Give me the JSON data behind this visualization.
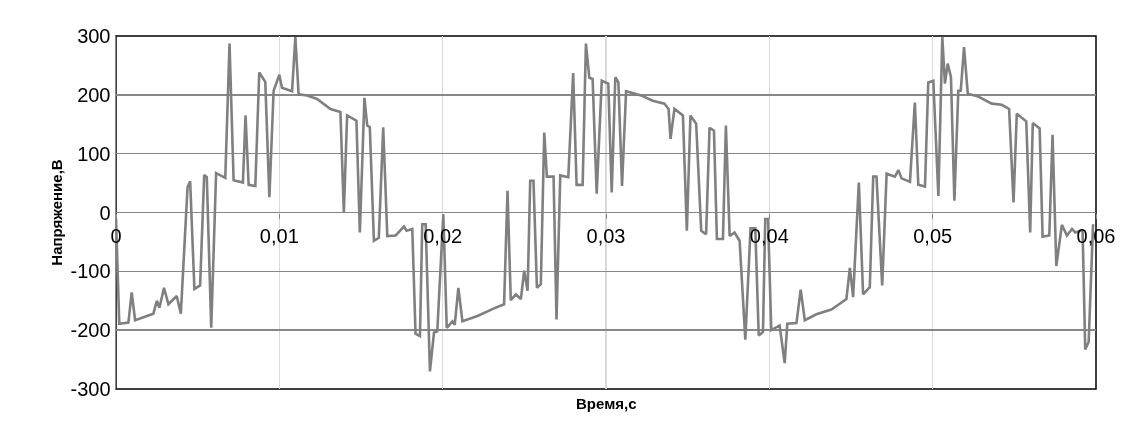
{
  "chart_data": {
    "type": "line",
    "xlabel": "Время,с",
    "ylabel": "Напряжение,В",
    "xlim": [
      0,
      0.06
    ],
    "ylim": [
      -300,
      300
    ],
    "xticks": [
      0,
      {
        "value": 0.01,
        "label": "0,01"
      },
      {
        "value": 0.02,
        "label": "0,02"
      },
      {
        "value": 0.03,
        "label": "0,03"
      },
      {
        "value": 0.04,
        "label": "0,04"
      },
      {
        "value": 0.05,
        "label": "0,05"
      },
      {
        "value": 0.06,
        "label": "0,06"
      }
    ],
    "yticks": [
      -300,
      -200,
      -100,
      0,
      100,
      200,
      300
    ],
    "grid": true,
    "marker": "none",
    "line_style": "solid",
    "series": [
      {
        "color": "#808080",
        "x": [
          0,
          0.0002,
          0.00076,
          0.00096,
          0.00117,
          0.00168,
          0.00229,
          0.0025,
          0.00266,
          0.00294,
          0.00321,
          0.00372,
          0.00397,
          0.00438,
          0.00454,
          0.0048,
          0.00515,
          0.0054,
          0.00556,
          0.00583,
          0.00613,
          0.00669,
          0.00695,
          0.0072,
          0.00777,
          0.00793,
          0.00812,
          0.00853,
          0.00877,
          0.00914,
          0.00939,
          0.00965,
          0.01,
          0.01016,
          0.01078,
          0.01098,
          0.01118,
          0.0117,
          0.01231,
          0.01313,
          0.01374,
          0.01395,
          0.01415,
          0.01472,
          0.01493,
          0.01521,
          0.01538,
          0.01554,
          0.01579,
          0.01609,
          0.01636,
          0.01661,
          0.01712,
          0.01763,
          0.01779,
          0.01814,
          0.01834,
          0.01861,
          0.01875,
          0.01896,
          0.01922,
          0.01947,
          0.01967,
          0.02004,
          0.02025,
          0.0206,
          0.02074,
          0.02096,
          0.02121,
          0.02213,
          0.02315,
          0.02376,
          0.02397,
          0.02417,
          0.02448,
          0.02479,
          0.02499,
          0.0252,
          0.02536,
          0.02556,
          0.02577,
          0.02601,
          0.02622,
          0.02638,
          0.02679,
          0.02697,
          0.0272,
          0.02769,
          0.02799,
          0.0282,
          0.02857,
          0.02877,
          0.02898,
          0.02918,
          0.02943,
          0.02974,
          0.03014,
          0.03035,
          0.03057,
          0.03076,
          0.03098,
          0.03123,
          0.03215,
          0.03286,
          0.03358,
          0.03383,
          0.03395,
          0.03419,
          0.03471,
          0.03495,
          0.03517,
          0.03552,
          0.03583,
          0.03613,
          0.03634,
          0.03661,
          0.03679,
          0.03716,
          0.03734,
          0.03757,
          0.03787,
          0.03818,
          0.03853,
          0.03885,
          0.03914,
          0.03935,
          0.03961,
          0.03975,
          0.03992,
          0.04012,
          0.04063,
          0.04094,
          0.0411,
          0.04166,
          0.04192,
          0.04217,
          0.04288,
          0.0438,
          0.04442,
          0.04472,
          0.04493,
          0.04513,
          0.04548,
          0.04574,
          0.04615,
          0.04636,
          0.04656,
          0.04691,
          0.04718,
          0.04769,
          0.0479,
          0.0481,
          0.04861,
          0.04891,
          0.04912,
          0.04953,
          0.04973,
          0.05004,
          0.05035,
          0.05059,
          0.05075,
          0.05092,
          0.05112,
          0.05133,
          0.05157,
          0.05172,
          0.05192,
          0.05215,
          0.0528,
          0.05362,
          0.05423,
          0.05468,
          0.05495,
          0.05515,
          0.05573,
          0.05597,
          0.05613,
          0.05655,
          0.05673,
          0.05714,
          0.05734,
          0.05757,
          0.05791,
          0.05822,
          0.05853,
          0.05873,
          0.05904,
          0.05918,
          0.05934,
          0.05955,
          0.05982
        ],
        "values": [
          -10,
          -189,
          -187,
          -136,
          -183,
          -178,
          -172,
          -150,
          -162,
          -128,
          -156,
          -142,
          -172,
          43,
          53,
          -130,
          -124,
          64,
          60,
          -196,
          67,
          59,
          287,
          55,
          51,
          165,
          47,
          45,
          238,
          222,
          26,
          207,
          234,
          212,
          206,
          298,
          201,
          199,
          193,
          176,
          171,
          0,
          165,
          156,
          -34,
          195,
          148,
          145,
          -48,
          -43,
          145,
          -40,
          -39,
          -24,
          -31,
          -28,
          -206,
          -210,
          -20,
          -20,
          -270,
          -204,
          -202,
          -3,
          -196,
          -185,
          -191,
          -128,
          -185,
          -176,
          -163,
          -156,
          37,
          -149,
          -139,
          -147,
          -99,
          -133,
          54,
          54,
          -128,
          -122,
          136,
          61,
          61,
          -182,
          63,
          60,
          237,
          47,
          47,
          287,
          229,
          227,
          32,
          224,
          219,
          34,
          230,
          221,
          45,
          206,
          199,
          190,
          185,
          176,
          125,
          176,
          165,
          -31,
          165,
          151,
          -31,
          -37,
          144,
          139,
          -45,
          -45,
          148,
          -40,
          -34,
          -48,
          -216,
          -27,
          -27,
          -209,
          -203,
          -11,
          -11,
          -200,
          -192,
          -256,
          -189,
          -188,
          -131,
          -183,
          -173,
          -165,
          -153,
          -147,
          -94,
          -144,
          51,
          -139,
          -127,
          61,
          61,
          -124,
          66,
          61,
          72,
          58,
          52,
          187,
          47,
          44,
          221,
          224,
          28,
          298,
          219,
          253,
          230,
          20,
          207,
          207,
          281,
          202,
          197,
          185,
          183,
          176,
          17,
          168,
          155,
          -34,
          152,
          143,
          -41,
          -39,
          132,
          -91,
          -21,
          -39,
          -28,
          -34,
          -31,
          -31,
          -233,
          -220,
          -20
        ]
      }
    ]
  }
}
